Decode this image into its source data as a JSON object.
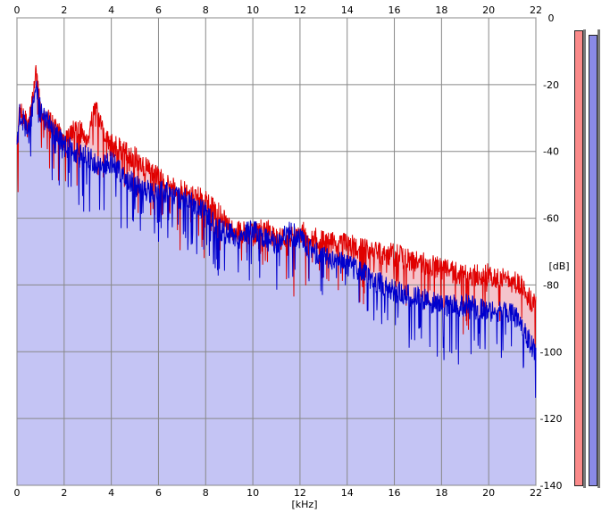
{
  "chart_data": {
    "type": "area",
    "xlabel": "[kHz]",
    "ylabel": "[dB]",
    "xlim": [
      0,
      22
    ],
    "ylim": [
      -140,
      0
    ],
    "x_ticks": [
      "0",
      "2",
      "4",
      "6",
      "8",
      "10",
      "12",
      "14",
      "16",
      "18",
      "20",
      "22"
    ],
    "y_ticks": [
      "0",
      "-20",
      "-40",
      "-60",
      "-80",
      "-100",
      "-120",
      "-140"
    ],
    "grid": true,
    "series": [
      {
        "color": "#e00000",
        "fill": "#f4c4cc",
        "x": [
          0,
          0.1,
          0.5,
          0.8,
          1.0,
          1.5,
          2,
          2.5,
          3.0,
          3.3,
          3.5,
          4,
          4.5,
          5,
          6,
          7,
          8,
          8.5,
          9,
          9.5,
          10,
          10.5,
          11,
          11.5,
          12,
          12.5,
          13,
          14,
          15,
          16,
          17,
          18,
          19,
          20,
          21,
          21.5,
          22
        ],
        "y": [
          -40,
          -28,
          -33,
          -16,
          -28,
          -32,
          -37,
          -33,
          -36,
          -26,
          -32,
          -38,
          -40,
          -42,
          -48,
          -52,
          -55,
          -58,
          -63,
          -64,
          -65,
          -63,
          -66,
          -66,
          -64,
          -66,
          -67,
          -68,
          -70,
          -71,
          -73,
          -75,
          -77,
          -77,
          -79,
          -81,
          -87
        ]
      },
      {
        "color": "#0000cc",
        "fill": "#c4c4f4",
        "x": [
          0,
          0.1,
          0.5,
          0.8,
          1.0,
          1.5,
          2,
          2.5,
          3.0,
          3.5,
          4,
          4.5,
          5,
          5.5,
          6,
          7,
          8,
          8.5,
          9,
          9.5,
          10,
          10.5,
          11,
          11.5,
          12,
          12.5,
          13,
          14,
          15,
          16,
          17,
          18,
          19,
          20,
          21,
          21.5,
          22
        ],
        "y": [
          -40,
          -28,
          -35,
          -20,
          -28,
          -34,
          -38,
          -40,
          -42,
          -44,
          -43,
          -47,
          -50,
          -52,
          -52,
          -54,
          -58,
          -63,
          -65,
          -66,
          -63,
          -66,
          -68,
          -64,
          -66,
          -70,
          -71,
          -74,
          -78,
          -82,
          -84,
          -86,
          -86,
          -88,
          -88,
          -94,
          -100
        ]
      }
    ],
    "level_meters": [
      {
        "color": "#fa8a8a",
        "level": 0.99
      },
      {
        "color": "#8a8ae6",
        "level": 0.98
      }
    ]
  }
}
